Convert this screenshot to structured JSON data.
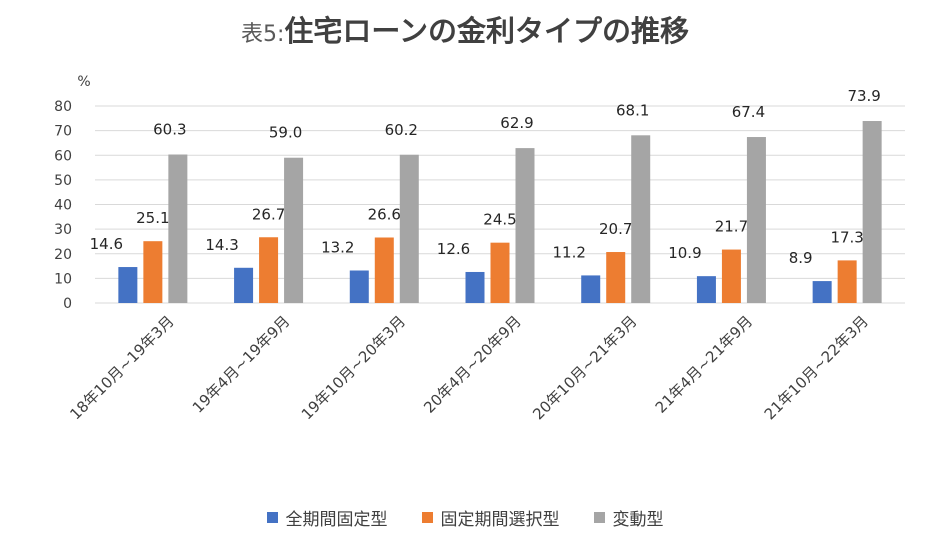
{
  "title": {
    "prefix": "表5:",
    "main": "住宅ローンの金利タイプの推移"
  },
  "colors": {
    "fixed_full": "#4472C4",
    "fixed_select": "#ED7D31",
    "variable": "#A5A5A5",
    "grid": "#D9D9D9"
  },
  "chart_data": {
    "type": "bar",
    "title": "表5:住宅ローンの金利タイプの推移",
    "ylabel": "%",
    "xlabel": "",
    "ylim": [
      0,
      80
    ],
    "yticks": [
      0,
      10,
      20,
      30,
      40,
      50,
      60,
      70,
      80
    ],
    "grid": true,
    "legend_position": "bottom",
    "categories": [
      "18年10月~19年3月",
      "19年4月~19年9月",
      "19年10月~20年3月",
      "20年4月~20年9月",
      "20年10月~21年3月",
      "21年4月~21年9月",
      "21年10月~22年3月"
    ],
    "series": [
      {
        "name": "全期間固定型",
        "values": [
          14.6,
          14.3,
          13.2,
          12.6,
          11.2,
          10.9,
          8.9
        ]
      },
      {
        "name": "固定期間選択型",
        "values": [
          25.1,
          26.7,
          26.6,
          24.5,
          20.7,
          21.7,
          17.3
        ]
      },
      {
        "name": "変動型",
        "values": [
          60.3,
          59.0,
          60.2,
          62.9,
          68.1,
          67.4,
          73.9
        ]
      }
    ]
  }
}
